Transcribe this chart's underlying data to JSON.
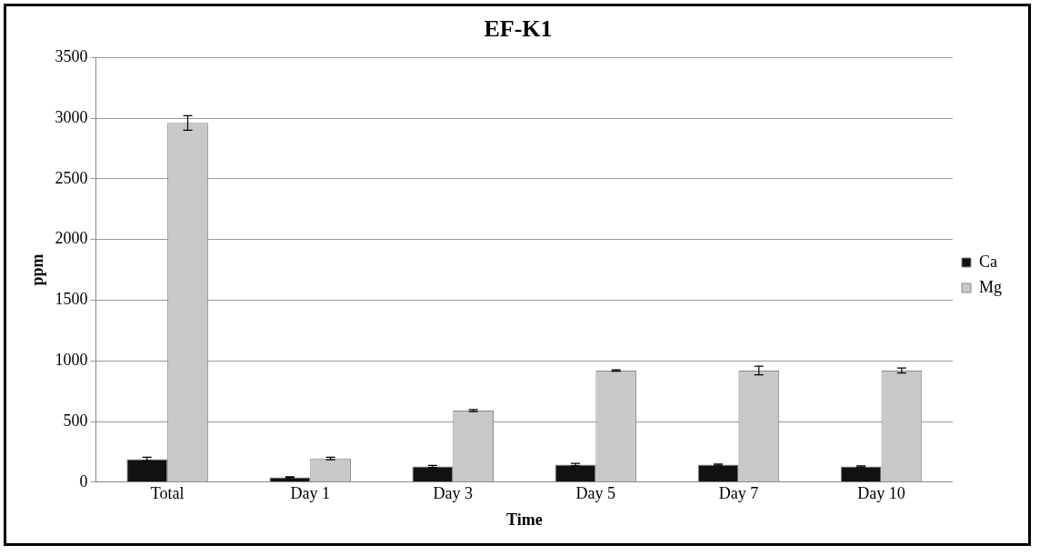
{
  "chart_data": {
    "type": "bar",
    "title": "EF-K1",
    "xlabel": "Time",
    "ylabel": "ppm",
    "categories": [
      "Total",
      "Day 1",
      "Day 3",
      "Day 5",
      "Day 7",
      "Day 10"
    ],
    "series": [
      {
        "name": "Ca",
        "color": "#111111",
        "values": [
          190,
          40,
          130,
          145,
          145,
          130
        ],
        "errors": [
          15,
          5,
          8,
          10,
          5,
          5
        ]
      },
      {
        "name": "Mg",
        "color": "#c8c8c8",
        "values": [
          2960,
          195,
          590,
          920,
          920,
          920
        ],
        "errors": [
          60,
          10,
          8,
          5,
          35,
          20
        ]
      }
    ],
    "ylim": [
      0,
      3500
    ],
    "yticks": [
      0,
      500,
      1000,
      1500,
      2000,
      2500,
      3000,
      3500
    ],
    "grid": "y",
    "legend": "right"
  }
}
